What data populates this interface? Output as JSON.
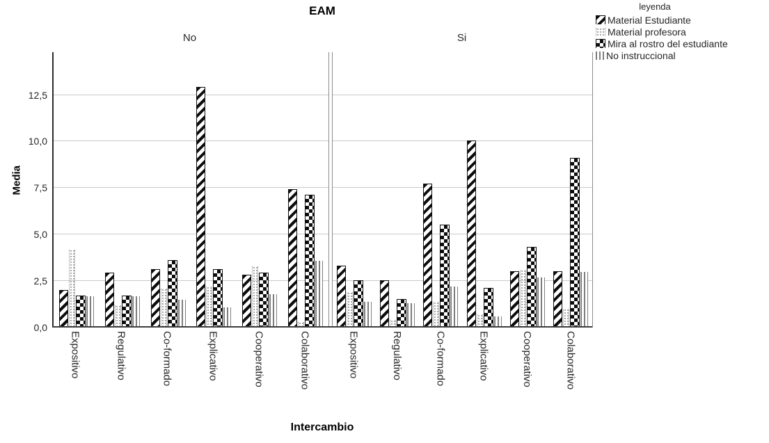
{
  "title": "EAM",
  "legend": {
    "title": "leyenda",
    "items": [
      {
        "label": "Material Estudiante",
        "pattern": "diagonal",
        "icon": "diagonal-stripes-swatch"
      },
      {
        "label": "Material profesora",
        "pattern": "dots",
        "icon": "dotted-swatch"
      },
      {
        "label": "Mira al rostro del estudiante",
        "pattern": "checker",
        "icon": "checkerboard-swatch"
      },
      {
        "label": "No instruccional",
        "pattern": "vlines",
        "icon": "vertical-lines-swatch"
      }
    ]
  },
  "chart_data": {
    "type": "bar",
    "title": "EAM",
    "xlabel": "Intercambio",
    "ylabel": "Media",
    "ylim": [
      0,
      14.8
    ],
    "grid": true,
    "legend_position": "top-right",
    "yticks": [
      {
        "value": 0,
        "label": "0,0"
      },
      {
        "value": 2.5,
        "label": "2,5"
      },
      {
        "value": 5,
        "label": "5,0"
      },
      {
        "value": 7.5,
        "label": "7,5"
      },
      {
        "value": 10,
        "label": "10,0"
      },
      {
        "value": 12.5,
        "label": "12,5"
      }
    ],
    "gridline_values": [
      2.5,
      5,
      7.5,
      10,
      12.5
    ],
    "categories": [
      "Expositivo",
      "Regulativo",
      "Co-formado",
      "Explicativo",
      "Cooperativo",
      "Colaborativo"
    ],
    "panels": [
      {
        "label": "No",
        "series": [
          {
            "name": "Material Estudiante",
            "values": [
              2.0,
              2.9,
              3.1,
              12.9,
              2.8,
              7.4
            ]
          },
          {
            "name": "Material profesora",
            "values": [
              4.2,
              1.2,
              2.1,
              2.2,
              3.3,
              0.3
            ]
          },
          {
            "name": "Mira al rostro del estudiante",
            "values": [
              1.7,
              1.7,
              3.6,
              3.1,
              2.9,
              7.1
            ]
          },
          {
            "name": "No instruccional",
            "values": [
              1.7,
              1.7,
              1.5,
              1.1,
              1.8,
              3.6
            ]
          }
        ]
      },
      {
        "label": "Si",
        "series": [
          {
            "name": "Material Estudiante",
            "values": [
              3.3,
              2.5,
              7.7,
              10.0,
              3.0,
              3.0
            ]
          },
          {
            "name": "Material profesora",
            "values": [
              1.9,
              0.4,
              1.4,
              0.7,
              3.1,
              1.0
            ]
          },
          {
            "name": "Mira al rostro del estudiante",
            "values": [
              2.5,
              1.5,
              5.5,
              2.1,
              4.3,
              9.1
            ]
          },
          {
            "name": "No instruccional",
            "values": [
              1.4,
              1.3,
              2.2,
              0.6,
              2.7,
              3.0
            ]
          }
        ]
      }
    ]
  },
  "colors": {
    "bar_black": "#0d0d0d",
    "bar_gray": "#7d7d7d",
    "dot_gray": "#8f8f8f",
    "gridline": "#c9c9c9",
    "axis_line": "#3c3c3c",
    "text": "#262626"
  }
}
